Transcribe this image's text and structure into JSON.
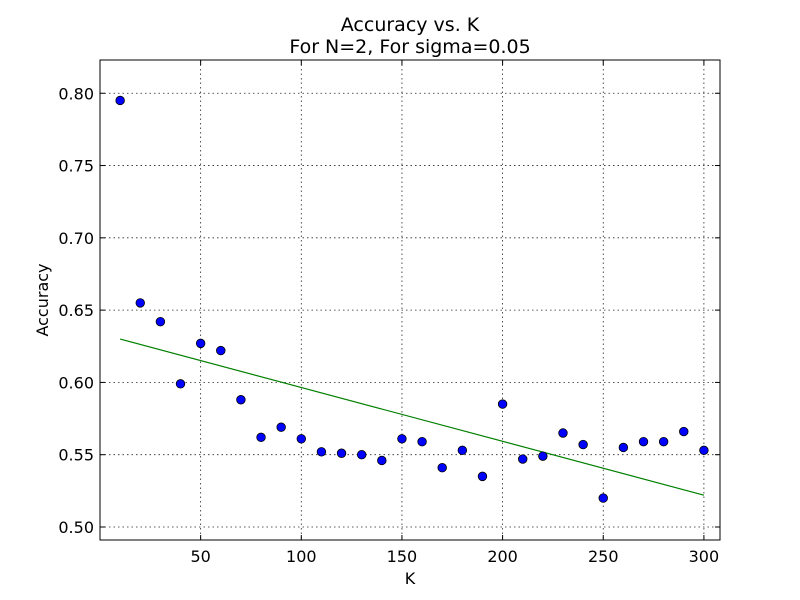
{
  "chart_data": {
    "type": "scatter",
    "title": "Accuracy vs. K",
    "subtitle": "For N=2, For sigma=0.05",
    "xlabel": "K",
    "ylabel": "Accuracy",
    "xlim": [
      0,
      308
    ],
    "ylim": [
      0.491,
      0.823
    ],
    "xticks": [
      50,
      100,
      150,
      200,
      250,
      300
    ],
    "yticks": [
      0.5,
      0.55,
      0.6,
      0.65,
      0.7,
      0.75,
      0.8
    ],
    "xtick_labels": [
      "50",
      "100",
      "150",
      "200",
      "250",
      "300"
    ],
    "ytick_labels": [
      "0.50",
      "0.55",
      "0.60",
      "0.65",
      "0.70",
      "0.75",
      "0.80"
    ],
    "grid": true,
    "legend": "none",
    "series": [
      {
        "kind": "scatter",
        "color": "#0000ff",
        "x": [
          10,
          20,
          30,
          40,
          50,
          60,
          70,
          80,
          90,
          100,
          110,
          120,
          130,
          140,
          150,
          160,
          170,
          180,
          190,
          200,
          210,
          220,
          230,
          240,
          250,
          260,
          270,
          280,
          290,
          300
        ],
        "y": [
          0.795,
          0.655,
          0.642,
          0.599,
          0.627,
          0.622,
          0.588,
          0.562,
          0.569,
          0.561,
          0.552,
          0.551,
          0.55,
          0.546,
          0.561,
          0.559,
          0.541,
          0.553,
          0.535,
          0.585,
          0.547,
          0.549,
          0.565,
          0.557,
          0.52,
          0.555,
          0.559,
          0.559,
          0.566,
          0.553
        ]
      },
      {
        "kind": "line",
        "color": "#008000",
        "x": [
          10,
          300
        ],
        "y": [
          0.63,
          0.522
        ]
      }
    ]
  }
}
